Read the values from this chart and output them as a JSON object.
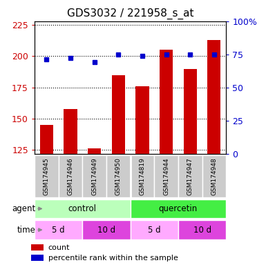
{
  "title": "GDS3032 / 221958_s_at",
  "samples": [
    "GSM174945",
    "GSM174946",
    "GSM174949",
    "GSM174950",
    "GSM174819",
    "GSM174944",
    "GSM174947",
    "GSM174948"
  ],
  "counts": [
    145,
    158,
    126,
    185,
    176,
    205,
    190,
    213
  ],
  "percentiles": [
    71,
    72,
    69,
    75,
    74,
    75,
    75,
    75
  ],
  "ylim_left": [
    122,
    228
  ],
  "ylim_right": [
    0,
    100
  ],
  "yticks_left": [
    125,
    150,
    175,
    200,
    225
  ],
  "yticks_right": [
    0,
    25,
    50,
    75,
    100
  ],
  "bar_color": "#cc0000",
  "dot_color": "#0000cc",
  "agent_groups": [
    {
      "label": "control",
      "start": 0,
      "end": 4,
      "color": "#bbffbb"
    },
    {
      "label": "quercetin",
      "start": 4,
      "end": 8,
      "color": "#44ee44"
    }
  ],
  "time_groups": [
    {
      "label": "5 d",
      "start": 0,
      "end": 2,
      "color": "#ffaaff"
    },
    {
      "label": "10 d",
      "start": 2,
      "end": 4,
      "color": "#dd44dd"
    },
    {
      "label": "5 d",
      "start": 4,
      "end": 6,
      "color": "#ffaaff"
    },
    {
      "label": "10 d",
      "start": 6,
      "end": 8,
      "color": "#dd44dd"
    }
  ],
  "legend_count_label": "count",
  "legend_pct_label": "percentile rank within the sample",
  "agent_label": "agent",
  "time_label": "time",
  "title_fontsize": 11,
  "tick_fontsize": 9,
  "label_fontsize": 8.5,
  "legend_fontsize": 8
}
